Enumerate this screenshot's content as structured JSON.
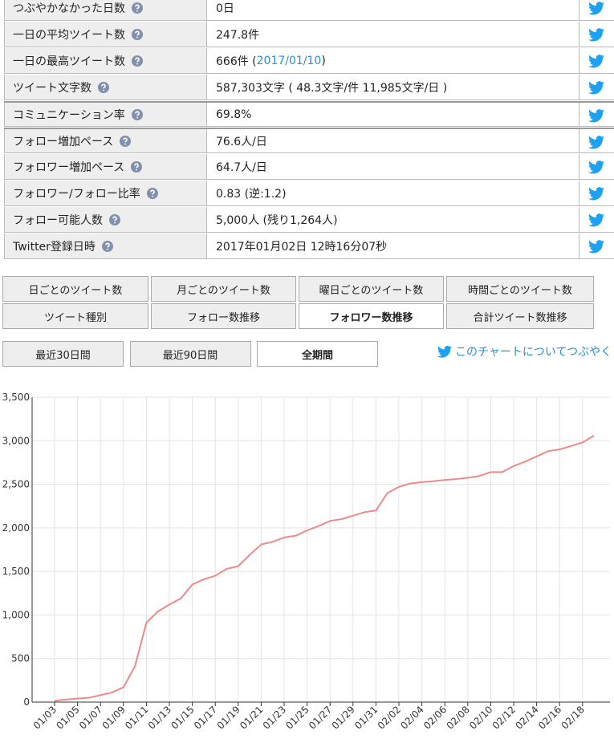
{
  "table": {
    "rows": [
      {
        "label": "つぶやかなかった日数",
        "value": "0日"
      },
      {
        "label": "一日の平均ツイート数",
        "value": "247.8件"
      },
      {
        "label": "一日の最高ツイート数",
        "value": "666件 (",
        "link": "2017/01/10",
        "value_end": ")"
      },
      {
        "label": "ツイート文字数",
        "value": "587,303文字 ( 48.3文字/件 11,985文字/日 )"
      },
      {
        "label": "コミュニケーション率",
        "value": "69.8%"
      },
      {
        "label": "フォロー増加ペース",
        "value": "76.6人/日"
      },
      {
        "label": "フォロワー増加ペース",
        "value": "64.7人/日"
      },
      {
        "label": "フォロワー/フォロー比率",
        "value": "0.83 (逆:1.2)"
      },
      {
        "label": "フォロー可能人数",
        "value": "5,000人 (残り1,264人)"
      },
      {
        "label": "Twitter登録日時",
        "value": "2017年01月02日 12時16分07秒"
      }
    ]
  },
  "tabs": [
    "日ごとのツイート数",
    "月ごとのツイート数",
    "曜日ごとのツイート数",
    "時間ごとのツイート数",
    "ツイート種別",
    "フォロー数推移",
    "フォロワー数推移",
    "合計ツイート数推移"
  ],
  "active_tab": 6,
  "ranges": [
    "最近30日間",
    "最近90日間",
    "全期間"
  ],
  "active_range": 2,
  "tweet_link": "このチャートについてつぶやく",
  "chart_data": {
    "type": "line",
    "color": "#ee8a8a",
    "grid": true,
    "categories": [
      "01/03",
      null,
      "01/05",
      null,
      "01/07",
      null,
      "01/09",
      null,
      "01/11",
      null,
      "01/13",
      null,
      "01/15",
      null,
      "01/17",
      null,
      "01/19",
      null,
      "01/21",
      null,
      "01/23",
      null,
      "01/25",
      null,
      "01/27",
      null,
      "01/29",
      null,
      "01/31",
      null,
      "02/02",
      null,
      "02/04",
      null,
      "02/06",
      null,
      "02/08",
      null,
      "02/10",
      null,
      "02/12",
      null,
      "02/14",
      null,
      "02/16",
      null,
      "02/18",
      null
    ],
    "values": [
      15,
      30,
      40,
      50,
      80,
      110,
      170,
      410,
      910,
      1040,
      1120,
      1190,
      1350,
      1410,
      1450,
      1530,
      1560,
      1690,
      1810,
      1840,
      1890,
      1910,
      1970,
      2020,
      2080,
      2100,
      2140,
      2180,
      2200,
      2400,
      2470,
      2510,
      2525,
      2535,
      2550,
      2560,
      2575,
      2595,
      2640,
      2640,
      2710,
      2760,
      2820,
      2880,
      2900,
      2940,
      2980,
      3060
    ],
    "ylim": [
      0,
      3500
    ],
    "yticks": [
      0,
      500,
      {
        "value": 1000,
        "label": "1,000"
      },
      {
        "value": 1500,
        "label": "1,500"
      },
      {
        "value": 2000,
        "label": "2,000"
      },
      {
        "value": 2500,
        "label": "2,500"
      },
      {
        "value": 3000,
        "label": "3,000"
      },
      {
        "value": 3500,
        "label": "3,500"
      }
    ]
  }
}
